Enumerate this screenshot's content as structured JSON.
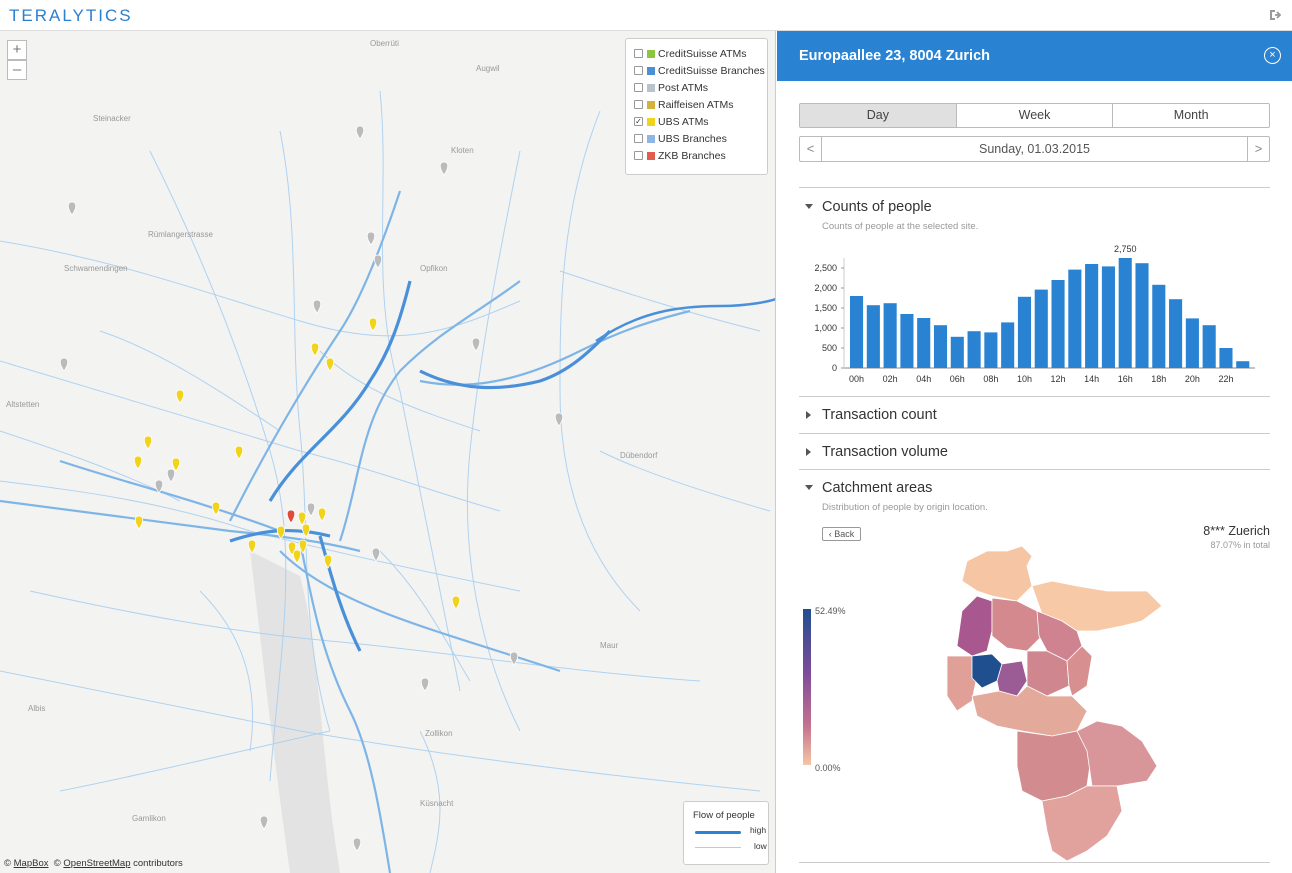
{
  "app": {
    "logo": "TERALYTICS"
  },
  "map": {
    "zoom_in": "+",
    "zoom_out": "–",
    "legend": [
      {
        "label": "CreditSuisse ATMs",
        "color": "#8cc63e",
        "checked": false
      },
      {
        "label": "CreditSuisse Branches",
        "color": "#4b8fd4",
        "checked": false
      },
      {
        "label": "Post ATMs",
        "color": "#b8c4cc",
        "checked": false
      },
      {
        "label": "Raiffeisen ATMs",
        "color": "#d4b23b",
        "checked": false
      },
      {
        "label": "UBS ATMs",
        "color": "#f2d31b",
        "checked": true
      },
      {
        "label": "UBS Branches",
        "color": "#8db6e3",
        "checked": false
      },
      {
        "label": "ZKB Branches",
        "color": "#e05c4c",
        "checked": false
      }
    ],
    "flow": {
      "title": "Flow of people",
      "high": "high",
      "low": "low"
    },
    "attribution": {
      "copy1": "©",
      "mapbox": "MapBox",
      "copy2": "©",
      "osm": "OpenStreetMap",
      "suffix": "contributors"
    }
  },
  "panel": {
    "title": "Europaallee 23, 8004 Zurich",
    "close": "×",
    "tabs": [
      "Day",
      "Week",
      "Month"
    ],
    "active_tab": "Day",
    "date": "Sunday, 01.03.2015",
    "prev": "<",
    "next": ">",
    "sections": {
      "counts": {
        "title": "Counts of people",
        "subtitle": "Counts of people at the selected site."
      },
      "tx_count": {
        "title": "Transaction count"
      },
      "tx_volume": {
        "title": "Transaction volume"
      },
      "catchment": {
        "title": "Catchment areas",
        "subtitle": "Distribution of people by origin location."
      }
    },
    "catchment": {
      "back": "Back",
      "zone": "8*** Zuerich",
      "share": "87.07% in total",
      "scale_max": "52.49%",
      "scale_min": "0.00%"
    }
  },
  "chart_data": {
    "type": "bar",
    "title": "Counts of people",
    "categories": [
      "00h",
      "01h",
      "02h",
      "03h",
      "04h",
      "05h",
      "06h",
      "07h",
      "08h",
      "09h",
      "10h",
      "11h",
      "12h",
      "13h",
      "14h",
      "15h",
      "16h",
      "17h",
      "18h",
      "19h",
      "20h",
      "21h",
      "22h",
      "23h"
    ],
    "values": [
      1800,
      1570,
      1620,
      1350,
      1250,
      1070,
      780,
      920,
      890,
      1140,
      1780,
      1960,
      2200,
      2460,
      2600,
      2540,
      2750,
      2620,
      2080,
      1720,
      1240,
      1070,
      500,
      170
    ],
    "tick_labels": [
      "00h",
      "02h",
      "04h",
      "06h",
      "08h",
      "10h",
      "12h",
      "14h",
      "16h",
      "18h",
      "20h",
      "22h"
    ],
    "yticks": [
      0,
      500,
      1000,
      1500,
      2000,
      2500
    ],
    "ytick_labels": [
      "0",
      "500",
      "1,000",
      "1,500",
      "2,000",
      "2,500"
    ],
    "ylim": [
      0,
      2750
    ],
    "peak_label": "2,750",
    "color": "#2a83d2"
  }
}
